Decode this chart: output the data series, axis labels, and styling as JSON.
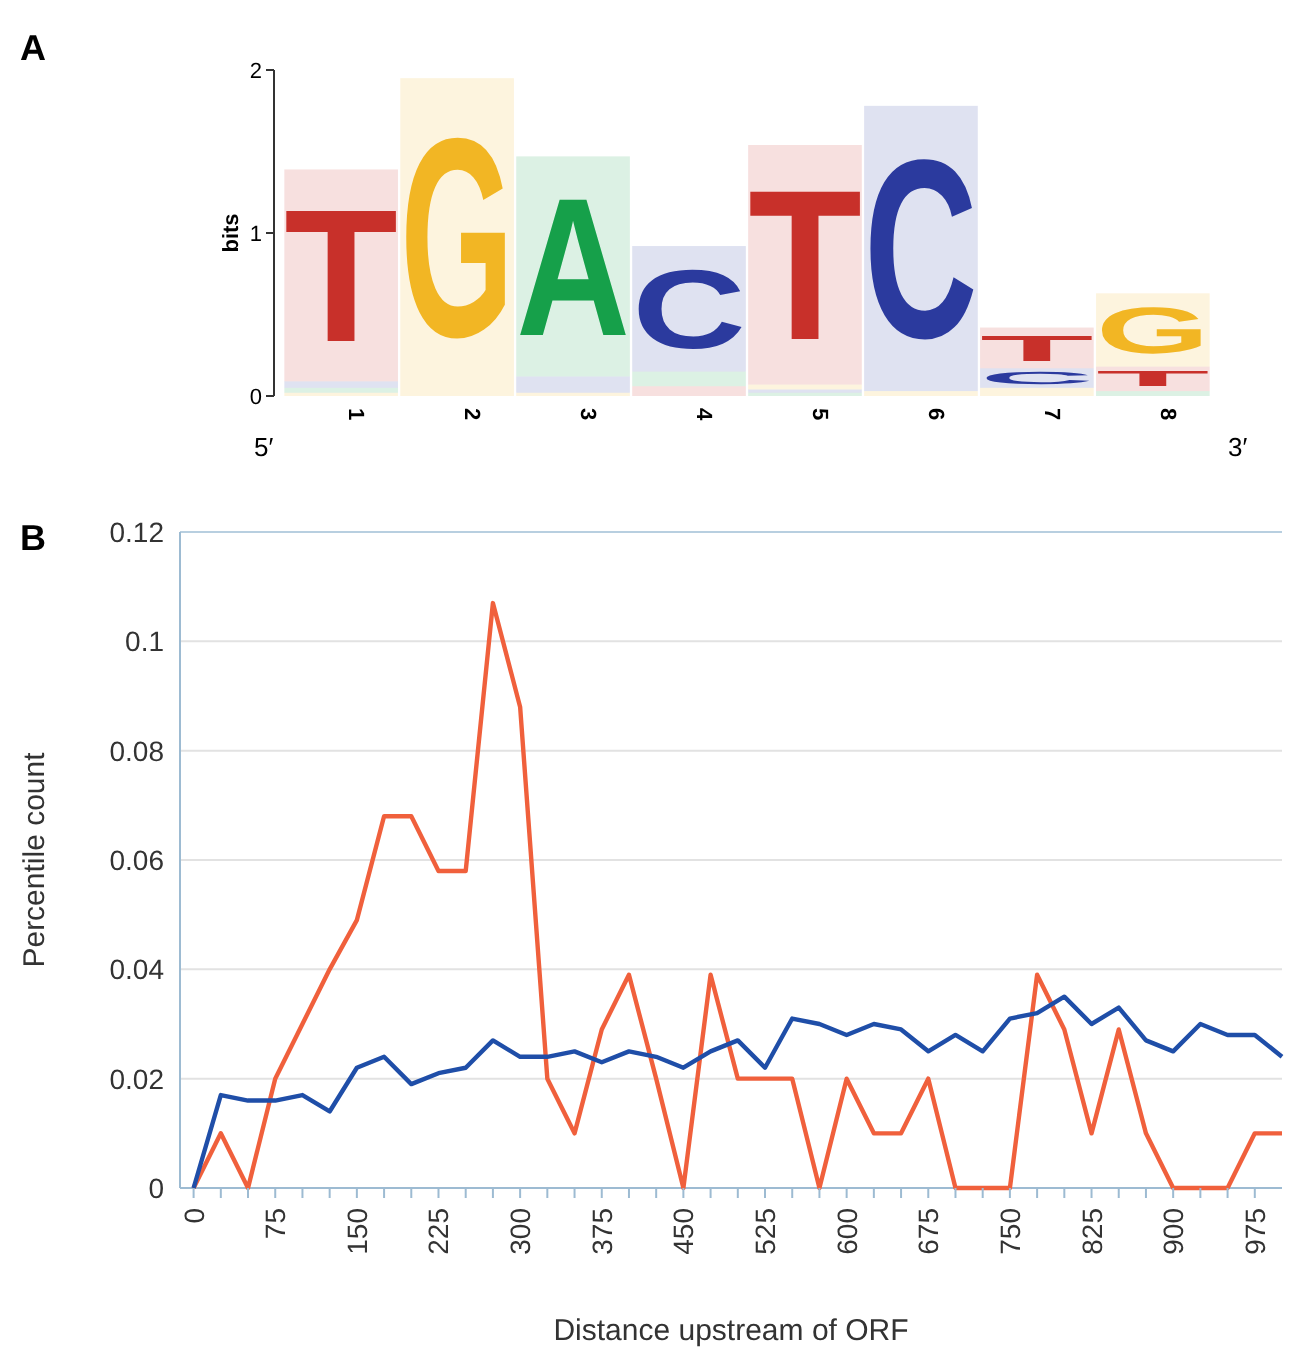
{
  "chart_data": [
    {
      "type": "bar",
      "title": "A",
      "ylabel": "bits",
      "stacked": true,
      "categories": [
        "1",
        "2",
        "3",
        "4",
        "5",
        "6",
        "7",
        "8"
      ],
      "ylim": [
        0,
        2
      ],
      "yticks": [
        0,
        1,
        2
      ],
      "annotations": [
        "5′",
        "3′"
      ],
      "series": [
        {
          "name": "A",
          "color": "#16a04a",
          "values": [
            0.03,
            0,
            1.35,
            0.09,
            0.02,
            0,
            0,
            0.03
          ]
        },
        {
          "name": "C",
          "color": "#2b3a9e",
          "values": [
            0.04,
            0,
            0.1,
            0.77,
            0.02,
            1.75,
            0.12,
            0
          ]
        },
        {
          "name": "G",
          "color": "#f2b624",
          "values": [
            0.02,
            1.95,
            0.02,
            0,
            0.03,
            0.03,
            0.05,
            0.45
          ]
        },
        {
          "name": "T",
          "color": "#c8302a",
          "values": [
            1.3,
            0,
            0,
            0.06,
            1.47,
            0,
            0.25,
            0.15
          ]
        }
      ]
    },
    {
      "type": "line",
      "title": "B",
      "xlabel": "Distance upstream of ORF",
      "ylabel": "Percentile count",
      "grid": "y",
      "xlim": [
        -12.5,
        1000
      ],
      "ylim": [
        0,
        0.12
      ],
      "x": [
        0,
        25,
        50,
        75,
        100,
        125,
        150,
        175,
        200,
        225,
        250,
        275,
        300,
        325,
        350,
        375,
        400,
        425,
        450,
        475,
        500,
        525,
        550,
        575,
        600,
        625,
        650,
        675,
        700,
        725,
        750,
        775,
        800,
        825,
        850,
        875,
        900,
        925,
        950,
        975,
        1000
      ],
      "xticks": [
        0,
        {
          "value": 25,
          "label": null
        },
        {
          "value": 50,
          "label": null
        },
        75,
        {
          "value": 100,
          "label": null
        },
        {
          "value": 125,
          "label": null
        },
        150,
        {
          "value": 175,
          "label": null
        },
        {
          "value": 200,
          "label": null
        },
        225,
        {
          "value": 250,
          "label": null
        },
        {
          "value": 275,
          "label": null
        },
        300,
        {
          "value": 325,
          "label": null
        },
        {
          "value": 350,
          "label": null
        },
        375,
        {
          "value": 400,
          "label": null
        },
        {
          "value": 425,
          "label": null
        },
        450,
        {
          "value": 475,
          "label": null
        },
        {
          "value": 500,
          "label": null
        },
        525,
        {
          "value": 550,
          "label": null
        },
        {
          "value": 575,
          "label": null
        },
        600,
        {
          "value": 625,
          "label": null
        },
        {
          "value": 650,
          "label": null
        },
        675,
        {
          "value": 700,
          "label": null
        },
        {
          "value": 725,
          "label": null
        },
        750,
        {
          "value": 775,
          "label": null
        },
        {
          "value": 800,
          "label": null
        },
        825,
        {
          "value": 850,
          "label": null
        },
        {
          "value": 875,
          "label": null
        },
        900,
        {
          "value": 925,
          "label": null
        },
        {
          "value": 950,
          "label": null
        },
        975
      ],
      "yticks": [
        0,
        0.02,
        0.04,
        0.06,
        0.08,
        0.1,
        0.12
      ],
      "series": [
        {
          "color": "#f0603c",
          "values": [
            0,
            0.01,
            0,
            0.02,
            0.03,
            0.04,
            0.049,
            0.068,
            0.068,
            0.058,
            0.058,
            0.107,
            0.088,
            0.02,
            0.01,
            0.029,
            0.039,
            0.02,
            0,
            0.039,
            0.02,
            0.02,
            0.02,
            0,
            0.02,
            0.01,
            0.01,
            0.02,
            0,
            0,
            0,
            0.039,
            0.029,
            0.01,
            0.029,
            0.01,
            0,
            0,
            0,
            0.01,
            0.01
          ]
        },
        {
          "color": "#1f4ea8",
          "values": [
            0,
            0.017,
            0.016,
            0.016,
            0.017,
            0.014,
            0.022,
            0.024,
            0.019,
            0.021,
            0.022,
            0.027,
            0.024,
            0.024,
            0.025,
            0.023,
            0.025,
            0.024,
            0.022,
            0.025,
            0.027,
            0.022,
            0.031,
            0.03,
            0.028,
            0.03,
            0.029,
            0.025,
            0.028,
            0.025,
            0.031,
            0.032,
            0.035,
            0.03,
            0.033,
            0.027,
            0.025,
            0.03,
            0.028,
            0.028,
            0.024
          ]
        }
      ]
    }
  ]
}
